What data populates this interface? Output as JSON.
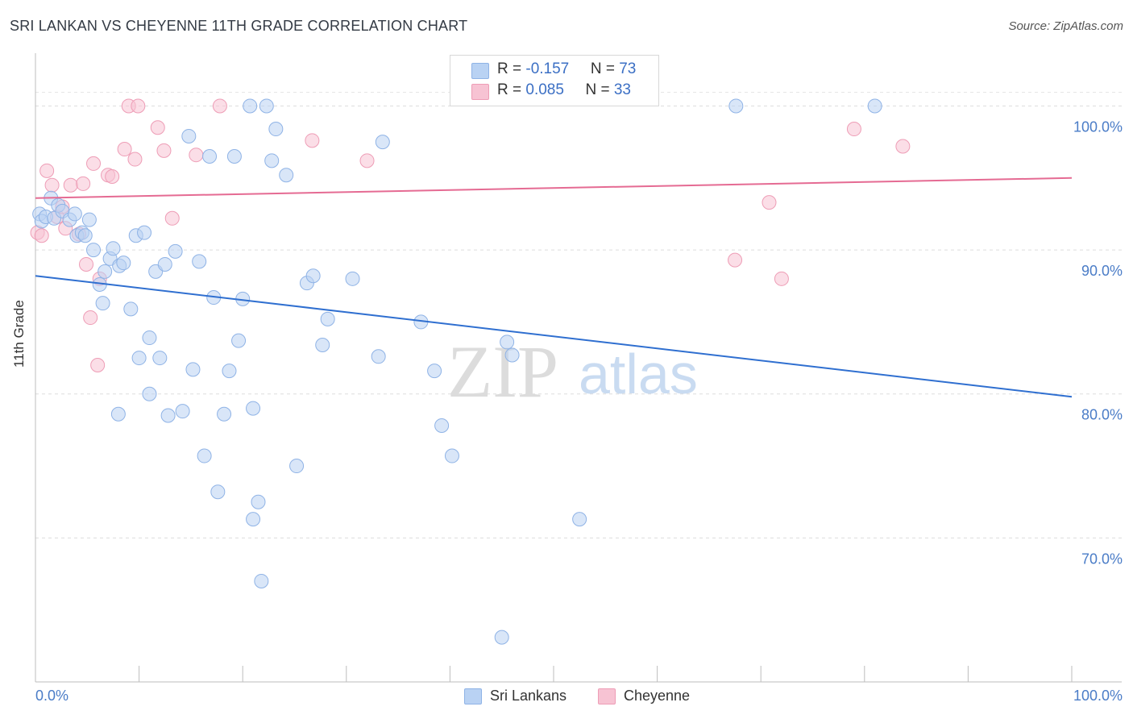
{
  "title": "SRI LANKAN VS CHEYENNE 11TH GRADE CORRELATION CHART",
  "source": "Source: ZipAtlas.com",
  "watermark": {
    "zip": "ZIP",
    "atlas": "atlas"
  },
  "colors": {
    "blue_fill": "#b9d2f3",
    "blue_stroke": "#8fb3e6",
    "blue_line": "#2f6fd0",
    "pink_fill": "#f7c3d3",
    "pink_stroke": "#ee9db6",
    "pink_line": "#e56b93",
    "tick": "#4a7cc7"
  },
  "legend": {
    "rows": [
      {
        "r_label": "R = ",
        "r_value": "-0.157",
        "n_label": "N = ",
        "n_value": "73"
      },
      {
        "r_label": "R = ",
        "r_value": "0.085",
        "n_label": "N = ",
        "n_value": "33"
      }
    ]
  },
  "bottom_legend": [
    "Sri Lankans",
    "Cheyenne"
  ],
  "chart_data": {
    "type": "scatter",
    "title": "SRI LANKAN VS CHEYENNE 11TH GRADE CORRELATION CHART",
    "xlabel": "",
    "ylabel": "11th Grade",
    "xlim": [
      0,
      100
    ],
    "ylim": [
      60,
      104
    ],
    "x_tick_labels": [
      "0.0%",
      "100.0%"
    ],
    "y_ticks": [
      70,
      80,
      90,
      100
    ],
    "y_tick_labels": [
      "70.0%",
      "80.0%",
      "90.0%",
      "100.0%"
    ],
    "grid": "horizontal dashed",
    "legend_placement": "top-center",
    "series": [
      {
        "name": "Sri Lankans",
        "r": -0.157,
        "n": 73,
        "trend": {
          "y_at_x0": 88.2,
          "y_at_x100": 79.8
        },
        "points": [
          [
            0.4,
            92.5
          ],
          [
            0.6,
            92.0
          ],
          [
            1.0,
            92.3
          ],
          [
            1.5,
            93.6
          ],
          [
            1.8,
            92.2
          ],
          [
            2.2,
            93.1
          ],
          [
            2.6,
            92.7
          ],
          [
            3.3,
            92.1
          ],
          [
            4.0,
            91.0
          ],
          [
            4.5,
            91.2
          ],
          [
            4.8,
            91.0
          ],
          [
            5.2,
            92.1
          ],
          [
            5.6,
            90.0
          ],
          [
            6.2,
            87.6
          ],
          [
            6.5,
            86.3
          ],
          [
            6.7,
            88.5
          ],
          [
            7.2,
            89.4
          ],
          [
            7.5,
            90.1
          ],
          [
            8.1,
            88.9
          ],
          [
            8.5,
            89.1
          ],
          [
            9.2,
            85.9
          ],
          [
            9.7,
            91.0
          ],
          [
            10.0,
            82.5
          ],
          [
            10.5,
            91.2
          ],
          [
            11.0,
            83.9
          ],
          [
            11.6,
            88.5
          ],
          [
            12.0,
            82.5
          ],
          [
            12.5,
            89.0
          ],
          [
            13.5,
            89.9
          ],
          [
            14.2,
            78.8
          ],
          [
            14.8,
            97.9
          ],
          [
            15.2,
            81.7
          ],
          [
            15.8,
            89.2
          ],
          [
            16.3,
            75.7
          ],
          [
            16.8,
            96.5
          ],
          [
            17.2,
            86.7
          ],
          [
            17.6,
            73.2
          ],
          [
            18.2,
            78.6
          ],
          [
            18.7,
            81.6
          ],
          [
            19.2,
            96.5
          ],
          [
            19.6,
            83.7
          ],
          [
            20.0,
            86.6
          ],
          [
            20.7,
            100.0
          ],
          [
            21.0,
            79.0
          ],
          [
            21.5,
            72.5
          ],
          [
            21.8,
            67.0
          ],
          [
            22.3,
            100.0
          ],
          [
            22.8,
            96.2
          ],
          [
            23.2,
            98.4
          ],
          [
            24.2,
            95.2
          ],
          [
            25.2,
            75.0
          ],
          [
            26.2,
            87.7
          ],
          [
            26.8,
            88.2
          ],
          [
            27.7,
            83.4
          ],
          [
            28.2,
            85.2
          ],
          [
            30.6,
            88.0
          ],
          [
            33.1,
            82.6
          ],
          [
            33.5,
            97.5
          ],
          [
            37.2,
            85.0
          ],
          [
            38.5,
            81.6
          ],
          [
            39.2,
            77.8
          ],
          [
            40.2,
            75.7
          ],
          [
            45.5,
            83.6
          ],
          [
            46.0,
            82.7
          ],
          [
            52.5,
            71.3
          ],
          [
            67.6,
            100.0
          ],
          [
            81.0,
            100.0
          ],
          [
            8.0,
            78.6
          ],
          [
            12.8,
            78.5
          ],
          [
            11.0,
            80.0
          ],
          [
            3.8,
            92.5
          ],
          [
            21.0,
            71.3
          ],
          [
            45.0,
            63.1
          ]
        ]
      },
      {
        "name": "Cheyenne",
        "r": 0.085,
        "n": 33,
        "trend": {
          "y_at_x0": 93.6,
          "y_at_x100": 95.0
        },
        "points": [
          [
            0.2,
            91.2
          ],
          [
            0.6,
            91.0
          ],
          [
            1.1,
            95.5
          ],
          [
            1.6,
            94.5
          ],
          [
            2.1,
            92.3
          ],
          [
            2.6,
            93.0
          ],
          [
            2.9,
            91.5
          ],
          [
            3.4,
            94.5
          ],
          [
            4.2,
            91.1
          ],
          [
            4.6,
            94.6
          ],
          [
            4.9,
            89.0
          ],
          [
            5.6,
            96.0
          ],
          [
            6.0,
            82.0
          ],
          [
            6.2,
            88.0
          ],
          [
            7.0,
            95.2
          ],
          [
            7.4,
            95.1
          ],
          [
            8.6,
            97.0
          ],
          [
            9.0,
            100.0
          ],
          [
            9.6,
            96.3
          ],
          [
            9.9,
            100.0
          ],
          [
            11.8,
            98.5
          ],
          [
            12.4,
            96.9
          ],
          [
            13.2,
            92.2
          ],
          [
            15.5,
            96.6
          ],
          [
            17.8,
            100.0
          ],
          [
            26.7,
            97.6
          ],
          [
            32.0,
            96.2
          ],
          [
            5.3,
            85.3
          ],
          [
            67.5,
            89.3
          ],
          [
            70.8,
            93.3
          ],
          [
            72.0,
            88.0
          ],
          [
            79.0,
            98.4
          ],
          [
            83.7,
            97.2
          ]
        ]
      }
    ]
  }
}
